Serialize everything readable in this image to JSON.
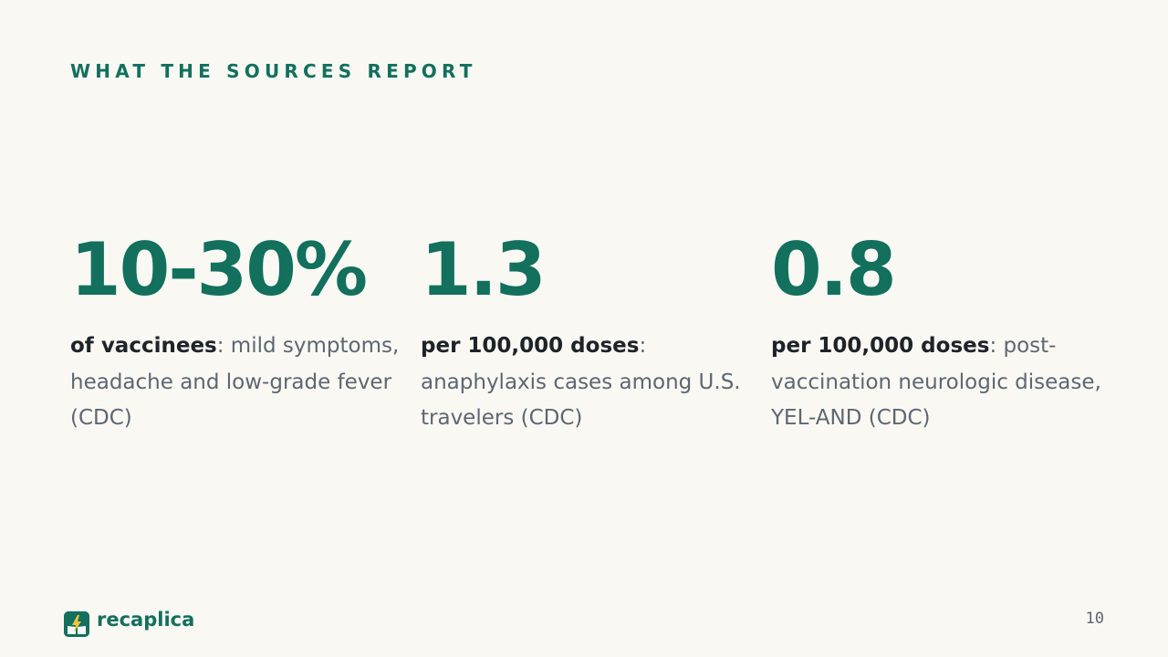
{
  "slide": {
    "eyebrow": "WHAT THE SOURCES REPORT",
    "stats": [
      {
        "value": "10-30%",
        "lead": "of vaccinees",
        "sep": ":",
        "text": " mild symptoms, headache and low-grade fever (CDC)"
      },
      {
        "value": "1.3",
        "lead": "per 100,000 doses",
        "sep": ":",
        "text": " anaphylaxis cases among U.S. travelers (CDC)"
      },
      {
        "value": "0.8",
        "lead": "per 100,000 doses",
        "sep": ":",
        "text": " post-vaccination neurologic disease, YEL-AND (CDC)"
      }
    ]
  },
  "footer": {
    "brand": "recaplica",
    "logo_icon": "lightning-book-icon",
    "page_number": "10"
  },
  "colors": {
    "accent": "#12705d",
    "background": "#f9f8f3",
    "text_muted": "#5d6672",
    "text_strong": "#1e2329",
    "logo_bolt": "#f2c53d"
  }
}
